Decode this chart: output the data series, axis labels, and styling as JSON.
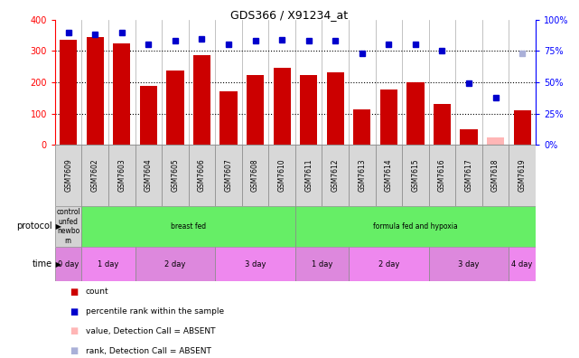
{
  "title": "GDS366 / X91234_at",
  "samples": [
    "GSM7609",
    "GSM7602",
    "GSM7603",
    "GSM7604",
    "GSM7605",
    "GSM7606",
    "GSM7607",
    "GSM7608",
    "GSM7610",
    "GSM7611",
    "GSM7612",
    "GSM7613",
    "GSM7614",
    "GSM7615",
    "GSM7616",
    "GSM7617",
    "GSM7618",
    "GSM7619"
  ],
  "counts": [
    335,
    345,
    325,
    190,
    237,
    288,
    170,
    222,
    247,
    222,
    232,
    113,
    177,
    200,
    132,
    50,
    25,
    112
  ],
  "absent_count": [
    false,
    false,
    false,
    false,
    false,
    false,
    false,
    false,
    false,
    false,
    false,
    false,
    false,
    false,
    false,
    false,
    true,
    false
  ],
  "ranks": [
    90,
    88,
    90,
    80,
    83,
    85,
    80,
    83,
    84,
    83,
    83,
    73,
    80,
    80,
    75,
    49,
    38,
    73
  ],
  "absent_rank": [
    false,
    false,
    false,
    false,
    false,
    false,
    false,
    false,
    false,
    false,
    false,
    false,
    false,
    false,
    false,
    false,
    false,
    true
  ],
  "ylim_left": [
    0,
    400
  ],
  "ylim_right": [
    0,
    100
  ],
  "yticks_left": [
    0,
    100,
    200,
    300,
    400
  ],
  "yticks_right": [
    0,
    25,
    50,
    75,
    100
  ],
  "bar_color": "#cc0000",
  "absent_bar_color": "#ffb6b6",
  "dot_color": "#0000cc",
  "absent_dot_color": "#aab0d8",
  "bg_color": "#ffffff",
  "grid_color": "#000000",
  "vline_color": "#aaaaaa",
  "protocol_labels": [
    {
      "text": "control\nunfed\nnewbo\nrn",
      "start": 0,
      "end": 1,
      "color": "#d3d3d3"
    },
    {
      "text": "breast fed",
      "start": 1,
      "end": 9,
      "color": "#66ee66"
    },
    {
      "text": "formula fed and hypoxia",
      "start": 9,
      "end": 18,
      "color": "#66ee66"
    }
  ],
  "time_groups": [
    {
      "text": "0 day",
      "start": 0,
      "end": 1,
      "color": "#dd88dd"
    },
    {
      "text": "1 day",
      "start": 1,
      "end": 3,
      "color": "#ee88ee"
    },
    {
      "text": "2 day",
      "start": 3,
      "end": 6,
      "color": "#dd88dd"
    },
    {
      "text": "3 day",
      "start": 6,
      "end": 9,
      "color": "#ee88ee"
    },
    {
      "text": "1 day",
      "start": 9,
      "end": 11,
      "color": "#dd88dd"
    },
    {
      "text": "2 day",
      "start": 11,
      "end": 14,
      "color": "#ee88ee"
    },
    {
      "text": "3 day",
      "start": 14,
      "end": 17,
      "color": "#dd88dd"
    },
    {
      "text": "4 day",
      "start": 17,
      "end": 18,
      "color": "#ee88ee"
    }
  ],
  "legend_items": [
    {
      "label": "count",
      "color": "#cc0000"
    },
    {
      "label": "percentile rank within the sample",
      "color": "#0000cc"
    },
    {
      "label": "value, Detection Call = ABSENT",
      "color": "#ffb6b6"
    },
    {
      "label": "rank, Detection Call = ABSENT",
      "color": "#aab0d8"
    }
  ]
}
